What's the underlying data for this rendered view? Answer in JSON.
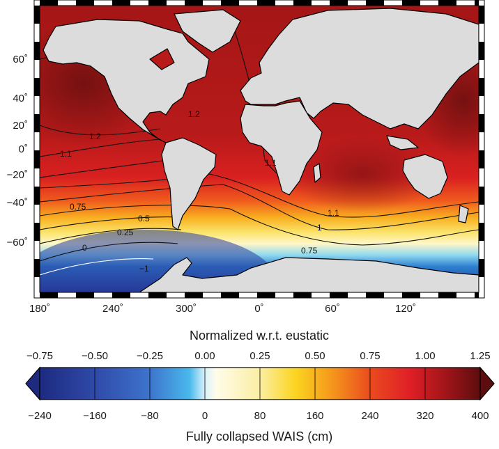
{
  "map": {
    "lat_labels": [
      "60˚",
      "40˚",
      "20˚",
      "0˚",
      "−20˚",
      "−40˚",
      "−60˚"
    ],
    "lon_labels": [
      "180˚",
      "240˚",
      "300˚",
      "0˚",
      "60˚",
      "120˚"
    ],
    "contour_labels": [
      "1.2",
      "1.2",
      "1.1",
      "1.1",
      "1.1",
      "1",
      "0.75",
      "0.5",
      "0.25",
      "0",
      "0.75",
      "−1"
    ],
    "colors": {
      "land": "#dcdcdc",
      "coast": "#000000",
      "max": "#7a1212",
      "min": "#1f2f86"
    }
  },
  "colorbar": {
    "top_title": "Normalized w.r.t. eustatic",
    "top_ticks": [
      "−0.75",
      "−0.50",
      "−0.25",
      "0.00",
      "0.25",
      "0.50",
      "0.75",
      "1.00",
      "1.25"
    ],
    "bottom_ticks": [
      "−240",
      "−160",
      "−80",
      "0",
      "80",
      "160",
      "240",
      "320",
      "400"
    ],
    "bottom_title": "Fully collapsed WAIS (cm)"
  }
}
